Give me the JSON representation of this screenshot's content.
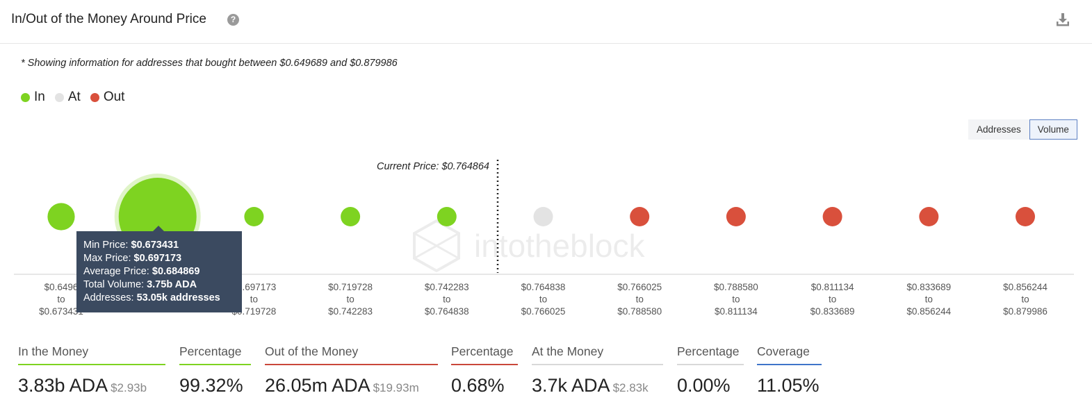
{
  "header": {
    "title": "In/Out of the Money Around Price",
    "help_icon": "?"
  },
  "note": "* Showing information for addresses that bought between $0.649689 and $0.879986",
  "legend": [
    {
      "label": "In",
      "color": "#7ed321"
    },
    {
      "label": "At",
      "color": "#e3e3e3"
    },
    {
      "label": "Out",
      "color": "#d9503c"
    }
  ],
  "toggle": {
    "addresses": "Addresses",
    "volume": "Volume",
    "active": "Volume"
  },
  "watermark": "intotheblock",
  "chart_data": {
    "type": "scatter",
    "current_price_label": "Current Price: $0.764864",
    "current_price_position_after_index": 4,
    "buckets": [
      {
        "low": "$0.6496",
        "high": "$0.673431",
        "status": "In",
        "size": 0.35
      },
      {
        "low": "",
        "high": "",
        "status": "In",
        "size": 1.0,
        "highlighted": true
      },
      {
        "low": "$0.697173",
        "high": "$0.719728",
        "status": "In",
        "size": 0.2
      },
      {
        "low": "$0.719728",
        "high": "$0.742283",
        "status": "In",
        "size": 0.22
      },
      {
        "low": "$0.742283",
        "high": "$0.764838",
        "status": "In",
        "size": 0.24
      },
      {
        "low": "$0.764838",
        "high": "$0.766025",
        "status": "At",
        "size": 0.21
      },
      {
        "low": "$0.766025",
        "high": "$0.788580",
        "status": "Out",
        "size": 0.23
      },
      {
        "low": "$0.788580",
        "high": "$0.811134",
        "status": "Out",
        "size": 0.25
      },
      {
        "low": "$0.811134",
        "high": "$0.833689",
        "status": "Out",
        "size": 0.22
      },
      {
        "low": "$0.833689",
        "high": "$0.856244",
        "status": "Out",
        "size": 0.22
      },
      {
        "low": "$0.856244",
        "high": "$0.879986",
        "status": "Out",
        "size": 0.25
      }
    ],
    "range_word": "to",
    "tooltip": {
      "min_label": "Min Price:",
      "min_value": "$0.673431",
      "max_label": "Max Price:",
      "max_value": "$0.697173",
      "avg_label": "Average Price:",
      "avg_value": "$0.684869",
      "vol_label": "Total Volume:",
      "vol_value": "3.75b ADA",
      "addr_label": "Addresses:",
      "addr_value": "53.05k addresses"
    }
  },
  "stats": {
    "in_money": {
      "label": "In the Money",
      "value": "3.83b ADA",
      "sub": "$2.93b",
      "color": "#7ed321"
    },
    "in_pct": {
      "label": "Percentage",
      "value": "99.32%",
      "color": "#7ed321"
    },
    "out_money": {
      "label": "Out of the Money",
      "value": "26.05m ADA",
      "sub": "$19.93m",
      "color": "#c9473a"
    },
    "out_pct": {
      "label": "Percentage",
      "value": "0.68%",
      "color": "#c9473a"
    },
    "at_money": {
      "label": "At the Money",
      "value": "3.7k ADA",
      "sub": "$2.83k",
      "color": "#d8d8d8"
    },
    "at_pct": {
      "label": "Percentage",
      "value": "0.00%",
      "color": "#d8d8d8"
    },
    "coverage": {
      "label": "Coverage",
      "value": "11.05%",
      "color": "#3f74c9"
    }
  }
}
